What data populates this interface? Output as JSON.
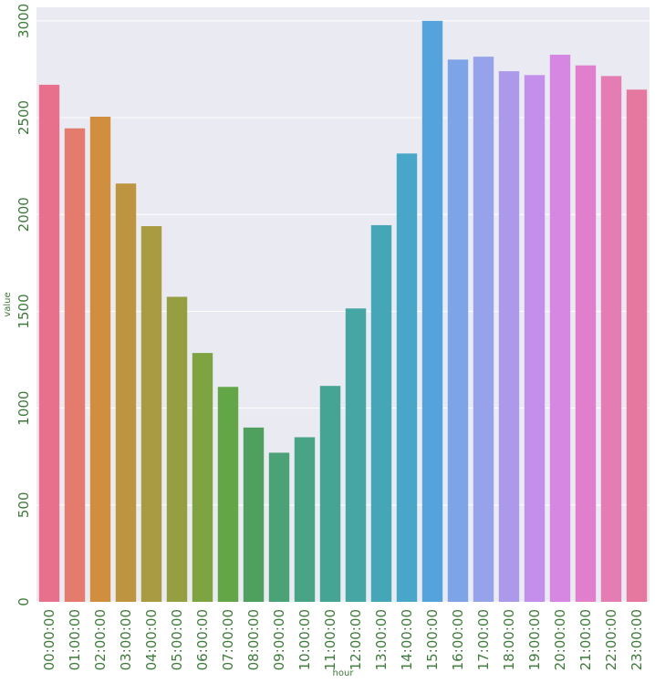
{
  "chart_data": {
    "type": "bar",
    "xlabel": "hour",
    "ylabel": "value",
    "ylim": [
      0,
      3070
    ],
    "grid": true,
    "yticks": [
      0,
      500,
      1000,
      1500,
      2000,
      2500,
      3000
    ],
    "categories": [
      "00:00:00",
      "01:00:00",
      "02:00:00",
      "03:00:00",
      "04:00:00",
      "05:00:00",
      "06:00:00",
      "07:00:00",
      "08:00:00",
      "09:00:00",
      "10:00:00",
      "11:00:00",
      "12:00:00",
      "13:00:00",
      "14:00:00",
      "15:00:00",
      "16:00:00",
      "17:00:00",
      "18:00:00",
      "19:00:00",
      "20:00:00",
      "21:00:00",
      "22:00:00",
      "23:00:00"
    ],
    "values": [
      2670,
      2445,
      2505,
      2160,
      1940,
      1575,
      1285,
      1110,
      900,
      770,
      850,
      1115,
      1515,
      1945,
      2315,
      3000,
      2800,
      2815,
      2740,
      2720,
      2825,
      2770,
      2715,
      2645
    ],
    "colors": [
      "#e8708c",
      "#e47c6e",
      "#d28e3f",
      "#bd9440",
      "#a89b41",
      "#959f41",
      "#7ea441",
      "#62a648",
      "#4f9f5e",
      "#4aa276",
      "#48a485",
      "#45a493",
      "#46a6a3",
      "#45a6b7",
      "#48a7c8",
      "#54a3dd",
      "#7ca4e6",
      "#96a2ea",
      "#ad99ea",
      "#c48fea",
      "#d687e2",
      "#e17fcd",
      "#e57db5",
      "#e6789f"
    ],
    "background": "#eaeaf2"
  }
}
